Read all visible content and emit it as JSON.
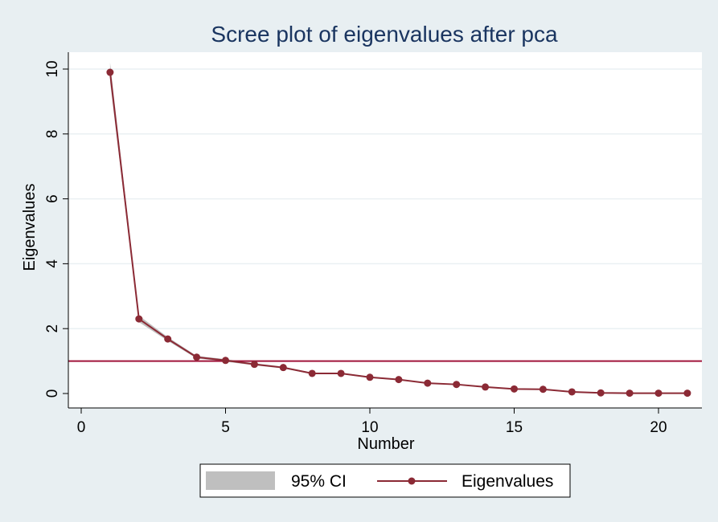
{
  "chart_data": {
    "type": "line",
    "title": "Scree plot of eigenvalues after pca",
    "xlabel": "Number",
    "ylabel": "Eigenvalues",
    "xlim": [
      0,
      21
    ],
    "ylim": [
      0,
      10
    ],
    "x_ticks": [
      0,
      5,
      10,
      15,
      20
    ],
    "y_ticks": [
      0,
      2,
      4,
      6,
      8,
      10
    ],
    "grid": true,
    "reference_line_y": 1,
    "legend_position": "bottom",
    "legend": [
      {
        "label": "95% CI",
        "kind": "band"
      },
      {
        "label": "Eigenvalues",
        "kind": "line-marker"
      }
    ],
    "series": [
      {
        "name": "Eigenvalues",
        "x": [
          1,
          2,
          3,
          4,
          5,
          6,
          7,
          8,
          9,
          10,
          11,
          12,
          13,
          14,
          15,
          16,
          17,
          18,
          19,
          20,
          21
        ],
        "values": [
          9.9,
          2.3,
          1.68,
          1.12,
          1.02,
          0.9,
          0.8,
          0.62,
          0.62,
          0.5,
          0.43,
          0.32,
          0.28,
          0.2,
          0.14,
          0.13,
          0.05,
          0.02,
          0.01,
          0.01,
          0.01
        ],
        "ci_lower": [
          9.6,
          2.2,
          1.62,
          1.08,
          0.98,
          0.87,
          0.77,
          0.6,
          0.6,
          0.48,
          0.41,
          0.31,
          0.27,
          0.19,
          0.13,
          0.12,
          0.05,
          0.02,
          0.01,
          0.01,
          0.01
        ],
        "ci_upper": [
          10.2,
          2.4,
          1.74,
          1.16,
          1.06,
          0.93,
          0.83,
          0.64,
          0.64,
          0.52,
          0.45,
          0.33,
          0.29,
          0.21,
          0.15,
          0.14,
          0.05,
          0.02,
          0.01,
          0.01,
          0.01
        ]
      }
    ],
    "colors": {
      "series": "#8b2a35",
      "ci_band": "#bfbfbf",
      "reference_line": "#a0143a",
      "grid": "#eaf0f3",
      "title": "#1a3560"
    }
  }
}
